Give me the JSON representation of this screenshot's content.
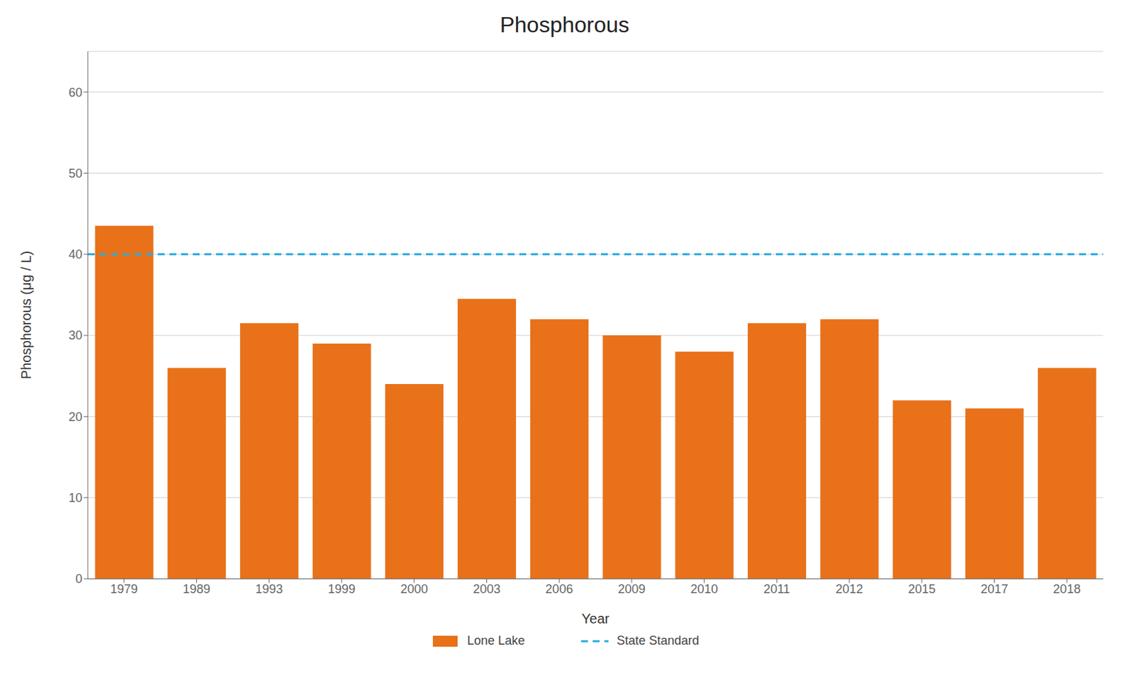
{
  "chart_data": {
    "type": "bar",
    "title": "Phosphorous",
    "xlabel": "Year",
    "ylabel": "Phosphorous (μg / L)",
    "categories": [
      "1979",
      "1989",
      "1993",
      "1999",
      "2000",
      "2003",
      "2006",
      "2009",
      "2010",
      "2011",
      "2012",
      "2015",
      "2017",
      "2018"
    ],
    "series": [
      {
        "name": "Lone Lake",
        "type": "bar",
        "color": "#E8711A",
        "values": [
          43.5,
          26.0,
          31.5,
          29.0,
          24.0,
          34.5,
          32.0,
          30.0,
          28.0,
          31.5,
          32.0,
          22.0,
          21.0,
          26.0
        ]
      },
      {
        "name": "State Standard",
        "type": "line",
        "line_style": "dashed",
        "color": "#29ABE2",
        "value": 40.0
      }
    ],
    "ylim": [
      0,
      65
    ],
    "yticks": [
      0,
      10,
      20,
      30,
      40,
      50,
      60
    ],
    "grid": true,
    "legend": "bottom"
  }
}
